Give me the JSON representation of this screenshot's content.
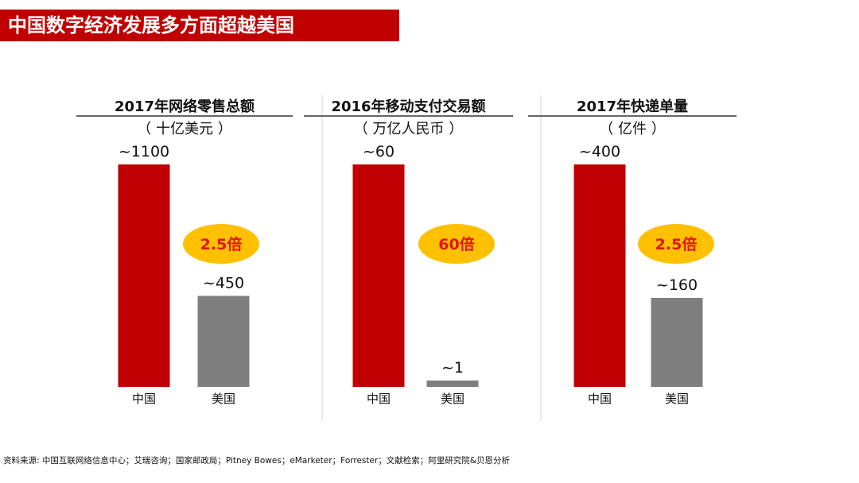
{
  "title": "中国数字经济发展多方面超越美国",
  "colors": {
    "title_bg": "#c00000",
    "china": "#c00000",
    "usa": "#7f7f7f",
    "ratio_bg": "#ffc000",
    "ratio_text": "#e0141b"
  },
  "chart_data": [
    {
      "type": "bar",
      "title": "2017年网络零售总额",
      "unit": "（ 十亿美元 ）",
      "categories": [
        "中国",
        "美国"
      ],
      "values": [
        1100,
        450
      ],
      "value_labels": [
        "~1100",
        "~450"
      ],
      "ratio": "2.5倍"
    },
    {
      "type": "bar",
      "title": "2016年移动支付交易额",
      "unit": "（ 万亿人民币 ）",
      "categories": [
        "中国",
        "美国"
      ],
      "values": [
        60,
        1
      ],
      "value_labels": [
        "~60",
        "~1"
      ],
      "ratio": "60倍"
    },
    {
      "type": "bar",
      "title": "2017年快递单量",
      "unit": "（ 亿件 ）",
      "categories": [
        "中国",
        "美国"
      ],
      "values": [
        400,
        160
      ],
      "value_labels": [
        "~400",
        "~160"
      ],
      "ratio": "2.5倍"
    }
  ],
  "source": "资料来源: 中国互联网络信息中心；艾瑞咨询；国家邮政局；Pitney Bowes；eMarketer；Forrester；文献检索；阿里研究院&贝恩分析"
}
